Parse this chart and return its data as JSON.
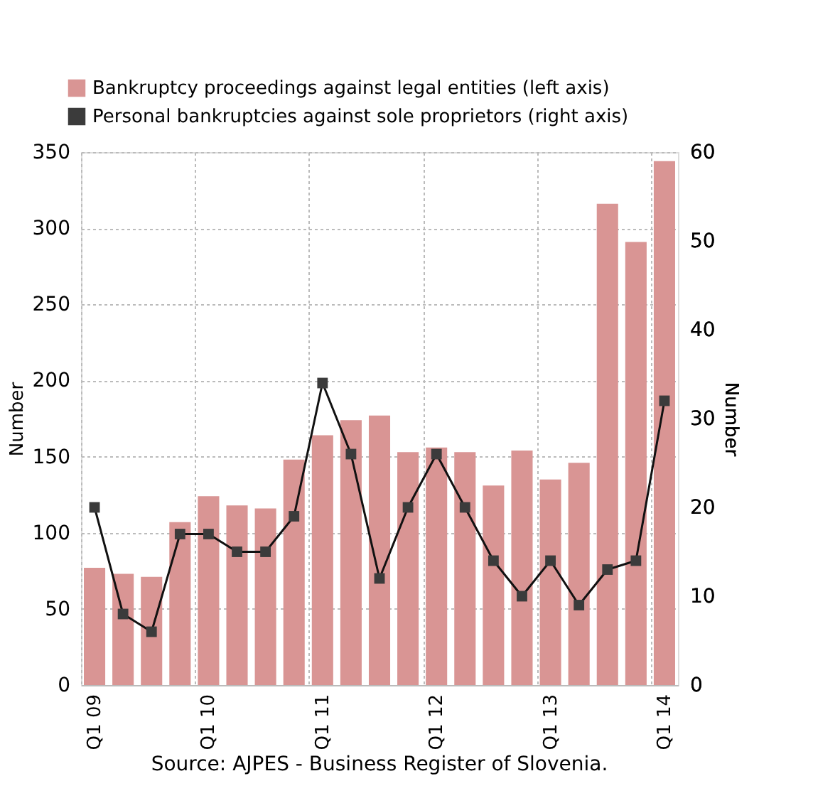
{
  "chart_data": {
    "type": "bar",
    "categories": [
      "Q1 09",
      null,
      null,
      null,
      "Q1 10",
      null,
      null,
      null,
      "Q1 11",
      null,
      null,
      null,
      "Q1 12",
      null,
      null,
      null,
      "Q1 13",
      null,
      null,
      null,
      "Q1 14"
    ],
    "series": [
      {
        "name": "Bankruptcy proceedings against  legal entities (left axis)",
        "color": "#d99594",
        "values": [
          77,
          73,
          71,
          107,
          124,
          118,
          116,
          148,
          164,
          174,
          177,
          153,
          156,
          153,
          131,
          154,
          135,
          146,
          316,
          291,
          344
        ]
      },
      {
        "name": "Personal bankruptcies  against  sole proprietors  (right axis)",
        "type": "line",
        "axis": "y2",
        "color": "#3b3b3b",
        "marker": "square",
        "line_style": "solid",
        "values": [
          20,
          8,
          6,
          17,
          17,
          15,
          15,
          19,
          34,
          26,
          12,
          20,
          26,
          20,
          14,
          10,
          14,
          9,
          13,
          14,
          32
        ]
      }
    ],
    "ylabel": "Number",
    "y2label": "Number",
    "ylim": [
      0,
      350
    ],
    "yticks": [
      0,
      50,
      100,
      150,
      200,
      250,
      300,
      350
    ],
    "y2lim": [
      0,
      60
    ],
    "y2ticks": [
      0,
      10,
      20,
      30,
      40,
      50,
      60
    ],
    "grid": true,
    "legend": "top",
    "annotations": [
      "Source: AJPES - Business Register of Slovenia."
    ]
  }
}
